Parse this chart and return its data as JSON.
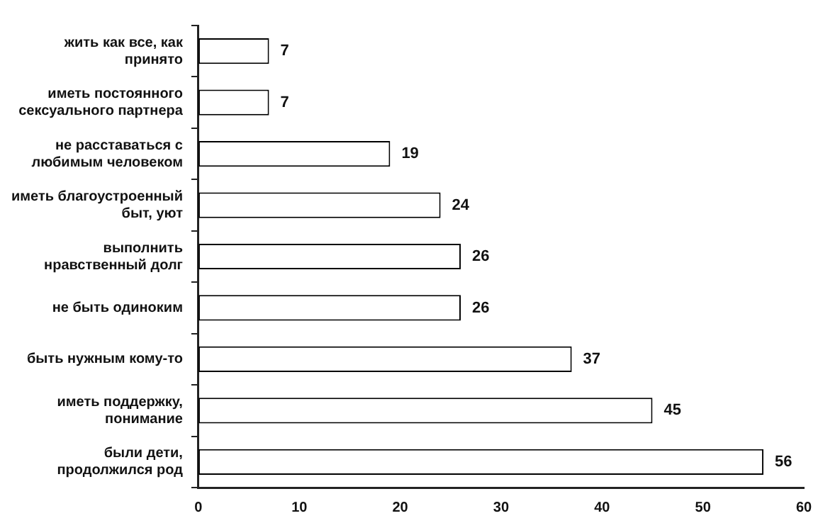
{
  "chart_data": {
    "type": "bar",
    "orientation": "horizontal",
    "categories": [
      "жить как все, как принято",
      "иметь постоянного сексуального партнера",
      "не расставаться с любимым человеком",
      "иметь благоустроенный быт, уют",
      "выполнить нравственный долг",
      "не быть одиноким",
      "быть нужным кому-то",
      "иметь поддержку, понимание",
      "были дети, продолжился род"
    ],
    "values": [
      7,
      7,
      19,
      24,
      26,
      26,
      37,
      45,
      56
    ],
    "color": "#ffffff",
    "xlim": [
      0,
      60
    ],
    "xticks": [
      0,
      10,
      20,
      30,
      40,
      50,
      60
    ],
    "data_labels": true,
    "grid": false,
    "legend": false
  }
}
